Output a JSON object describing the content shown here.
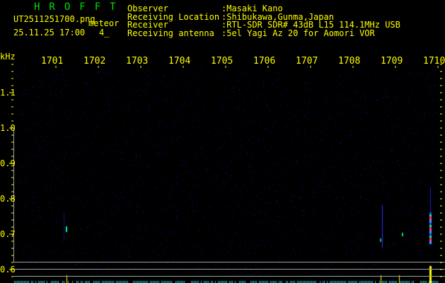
{
  "header": {
    "app_title": "HROFFT",
    "filename": "UT2511251700.png",
    "datetime": "25.11.25 17:00",
    "meteor_label": "meteor",
    "meteor_count": "4_",
    "info": [
      {
        "label": "Observer",
        "value": ":Masaki Kano"
      },
      {
        "label": "Receiving Location",
        "value": ":Shibukawa,Gunma,Japan"
      },
      {
        "label": "Receiver",
        "value": ":RTL-SDR SDR# 43dB L15 114.1MHz USB"
      },
      {
        "label": "Receiving antenna",
        "value": ":5el Yagi Az 20 for Aomori VOR"
      }
    ]
  },
  "axes": {
    "y_unit": "kHz",
    "y_ticks": [
      "1.1",
      "1.0",
      "0.9",
      "0.8",
      "0.7",
      "0.6"
    ],
    "x_ticks": [
      "1701",
      "1702",
      "1703",
      "1704",
      "1705",
      "1706",
      "1707",
      "1708",
      "1709",
      "1710"
    ]
  },
  "colors": {
    "text": "#ffff00",
    "title": "#00e000",
    "axis": "#a0a0a0",
    "background": "#000000",
    "noise": "#0a0a60",
    "echo_strip": "#00c8c8"
  }
}
